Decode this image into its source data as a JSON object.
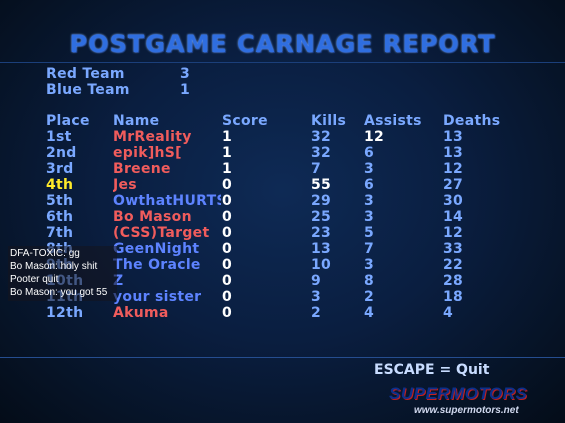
{
  "title": "POSTGAME CARNAGE REPORT",
  "teams": [
    {
      "name": "Red Team",
      "score": "3"
    },
    {
      "name": "Blue Team",
      "score": "1"
    }
  ],
  "headers": {
    "place": "Place",
    "name": "Name",
    "score": "Score",
    "kills": "Kills",
    "assists": "Assists",
    "deaths": "Deaths"
  },
  "rows": [
    {
      "place": "1st",
      "name": "MrReality",
      "team": "red",
      "score": "1",
      "kills": "32",
      "assists": "12",
      "deaths": "13"
    },
    {
      "place": "2nd",
      "name": "epik]hS[",
      "team": "red",
      "score": "1",
      "kills": "32",
      "assists": "6",
      "deaths": "13"
    },
    {
      "place": "3rd",
      "name": "Breene",
      "team": "red",
      "score": "1",
      "kills": "7",
      "assists": "3",
      "deaths": "12"
    },
    {
      "place": "4th",
      "name": "Jes",
      "team": "red",
      "score": "0",
      "kills": "55",
      "assists": "6",
      "deaths": "27"
    },
    {
      "place": "5th",
      "name": "OwthatHURTS",
      "team": "blue",
      "score": "0",
      "kills": "29",
      "assists": "3",
      "deaths": "30"
    },
    {
      "place": "6th",
      "name": "Bo Mason",
      "team": "red",
      "score": "0",
      "kills": "25",
      "assists": "3",
      "deaths": "14"
    },
    {
      "place": "7th",
      "name": "(CSS)Target",
      "team": "red",
      "score": "0",
      "kills": "23",
      "assists": "5",
      "deaths": "12"
    },
    {
      "place": "8th",
      "name": "GeenNight",
      "team": "blue",
      "score": "0",
      "kills": "13",
      "assists": "7",
      "deaths": "33"
    },
    {
      "place": "9th",
      "name": "The Oracle",
      "team": "blue",
      "score": "0",
      "kills": "10",
      "assists": "3",
      "deaths": "22"
    },
    {
      "place": "10th",
      "name": "Z",
      "team": "blue",
      "score": "0",
      "kills": "9",
      "assists": "8",
      "deaths": "28"
    },
    {
      "place": "11th",
      "name": "your sister",
      "team": "blue",
      "score": "0",
      "kills": "3",
      "assists": "2",
      "deaths": "18"
    },
    {
      "place": "12th",
      "name": "Akuma",
      "team": "red",
      "score": "0",
      "kills": "2",
      "assists": "4",
      "deaths": "4"
    }
  ],
  "chat": [
    "DFA-TOXIC: gg",
    "Bo Mason: holy shit",
    "Pooter quit",
    "Bo Mason: you got 55"
  ],
  "escape_label": "ESCAPE = Quit",
  "logo": {
    "brand": "SUPERMOTORS",
    "url": "www.supermotors.net"
  },
  "colors": {
    "header": "#7aa8ff",
    "highlight": "#ffea2a",
    "red_team": "#f05c5c",
    "blue_team": "#5d83ff",
    "title": "#2f6ee0"
  }
}
